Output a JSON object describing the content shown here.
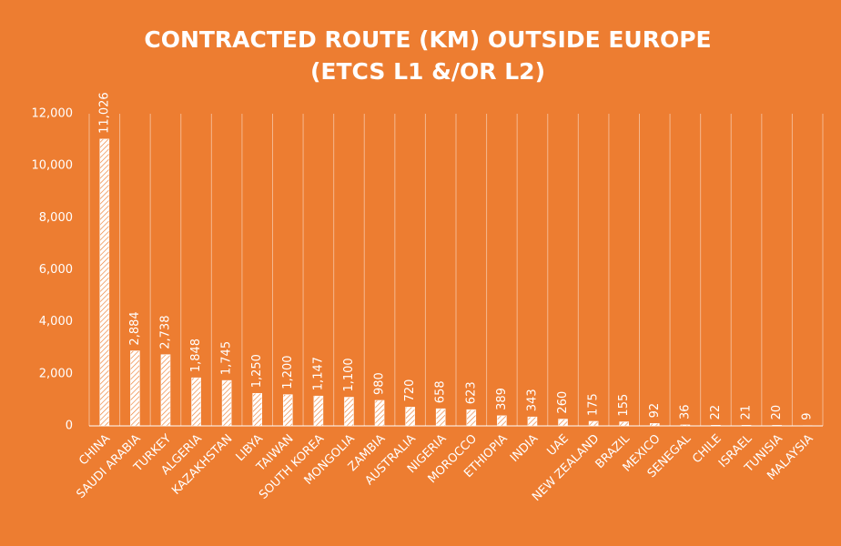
{
  "chart_data": {
    "type": "bar",
    "title": [
      "CONTRACTED ROUTE (KM) OUTSIDE EUROPE",
      "(ETCS L1 &/OR L2)"
    ],
    "categories": [
      "CHINA",
      "SAUDI ARABIA",
      "TURKEY",
      "ALGERIA",
      "KAZAKHSTAN",
      "LIBYA",
      "TAIWAN",
      "SOUTH KOREA",
      "MONGOLIA",
      "ZAMBIA",
      "AUSTRALIA",
      "NIGERIA",
      "MOROCCO",
      "ETHIOPIA",
      "INDIA",
      "UAE",
      "NEW ZEALAND",
      "BRAZIL",
      "MEXICO",
      "SENEGAL",
      "CHILE",
      "ISRAEL",
      "TUNISIA",
      "MALAYSIA"
    ],
    "values": [
      11026,
      2884,
      2738,
      1848,
      1745,
      1250,
      1200,
      1147,
      1100,
      980,
      720,
      658,
      623,
      389,
      343,
      260,
      175,
      155,
      92,
      36,
      22,
      21,
      20,
      9
    ],
    "value_labels": [
      "11,026",
      "2,884",
      "2,738",
      "1,848",
      "1,745",
      "1,250",
      "1,200",
      "1,147",
      "1,100",
      "980",
      "720",
      "658",
      "623",
      "389",
      "343",
      "260",
      "175",
      "155",
      "92",
      "36",
      "22",
      "21",
      "20",
      "9"
    ],
    "color": "#ffffff",
    "background": "#ed7d31",
    "ylim": [
      0,
      12000
    ],
    "yticks": [
      0,
      {
        "value": 2000,
        "label": "2,000"
      },
      {
        "value": 4000,
        "label": "4,000"
      },
      {
        "value": 6000,
        "label": "6,000"
      },
      {
        "value": 8000,
        "label": "8,000"
      },
      {
        "value": 10000,
        "label": "10,000"
      },
      {
        "value": 12000,
        "label": "12,000"
      }
    ],
    "grid": true
  }
}
